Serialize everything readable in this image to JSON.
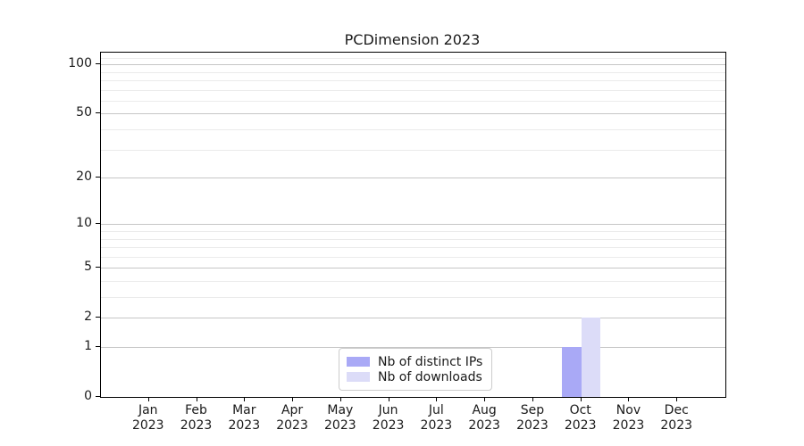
{
  "chart_data": {
    "type": "bar",
    "title": "PCDimension 2023",
    "scale": "log1p",
    "grid": "horizontal",
    "categories": [
      "Jan",
      "Feb",
      "Mar",
      "Apr",
      "May",
      "Jun",
      "Jul",
      "Aug",
      "Sep",
      "Oct",
      "Nov",
      "Dec"
    ],
    "category_year": "2023",
    "series": [
      {
        "name": "Nb of distinct IPs",
        "color": "#a9a9f6",
        "values": [
          0,
          0,
          0,
          0,
          0,
          0,
          0,
          0,
          0,
          1,
          0,
          0
        ]
      },
      {
        "name": "Nb of downloads",
        "color": "#dcdcf8",
        "values": [
          0,
          0,
          0,
          0,
          0,
          0,
          0,
          0,
          0,
          2,
          0,
          0
        ]
      }
    ],
    "yticks": [
      0,
      1,
      2,
      5,
      10,
      20,
      50,
      100
    ],
    "yticks_minor": [
      3,
      4,
      6,
      7,
      8,
      9,
      30,
      40,
      60,
      70,
      80,
      90,
      110
    ],
    "ylim": [
      0,
      118
    ],
    "legend_position": "lower-center"
  },
  "colors": {
    "grid_major": "#c6c6c6",
    "grid_minor": "#ebebeb",
    "spine": "#000000",
    "background": "#ffffff",
    "text": "#1a1a1a"
  }
}
